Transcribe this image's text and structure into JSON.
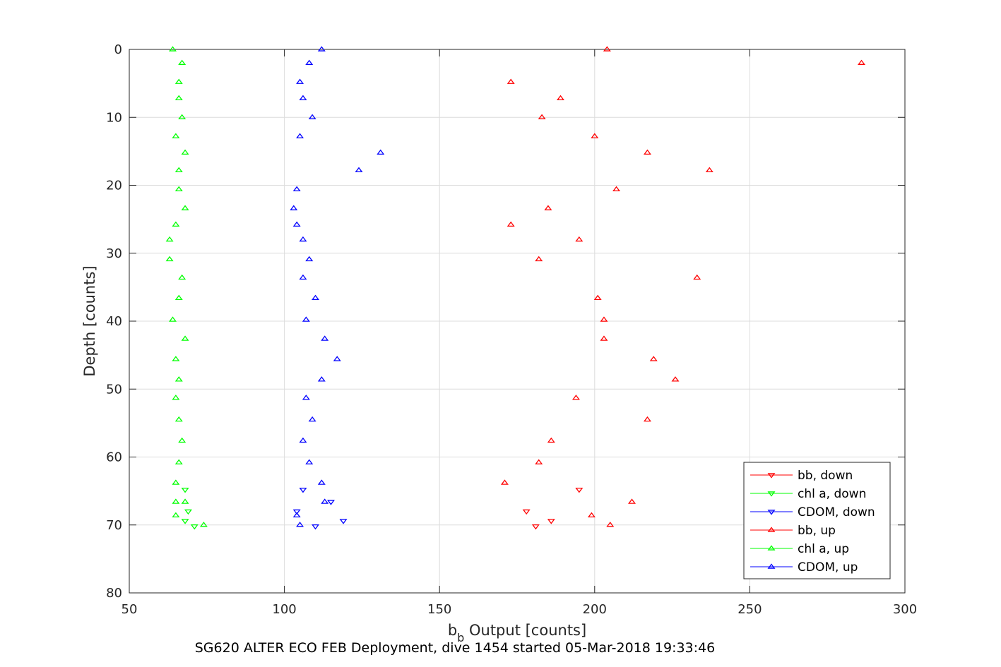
{
  "chart_data": {
    "type": "scatter",
    "title": "",
    "caption": "SG620 ALTER ECO FEB Deployment, dive 1454 started 05-Mar-2018 19:33:46",
    "xlabel_main": "b",
    "xlabel_sub": "b",
    "xlabel_rest": " Output [counts]",
    "ylabel": "Depth [counts]",
    "xlim": [
      50,
      300
    ],
    "ylim": [
      0,
      80
    ],
    "y_reversed": true,
    "xticks": [
      50,
      100,
      150,
      200,
      250,
      300
    ],
    "yticks": [
      0,
      10,
      20,
      30,
      40,
      50,
      60,
      70,
      80
    ],
    "grid": true,
    "legend_position": "bottom-right",
    "series": [
      {
        "name": "bb, down",
        "color": "#ff0000",
        "marker": "triangle-down",
        "x": [
          195,
          178,
          186,
          181
        ],
        "y": [
          64.8,
          68.0,
          69.4,
          70.2
        ]
      },
      {
        "name": "chl a, down",
        "color": "#00ff00",
        "marker": "triangle-down",
        "x": [
          68,
          69,
          68,
          71
        ],
        "y": [
          64.8,
          68.0,
          69.4,
          70.2
        ]
      },
      {
        "name": "CDOM, down",
        "color": "#0000ff",
        "marker": "triangle-down",
        "x": [
          106,
          115,
          104,
          119,
          110
        ],
        "y": [
          64.8,
          66.6,
          68.0,
          69.4,
          70.2
        ]
      },
      {
        "name": "bb, up",
        "color": "#ff0000",
        "marker": "triangle-up",
        "x": [
          204,
          286,
          173,
          189,
          183,
          200,
          217,
          237,
          207,
          185,
          173,
          195,
          182,
          233,
          201,
          203,
          203,
          219,
          226,
          194,
          217,
          186,
          182,
          171,
          212,
          199,
          205
        ],
        "y": [
          0,
          2.0,
          4.8,
          7.2,
          10.0,
          12.8,
          15.2,
          17.8,
          20.6,
          23.4,
          25.8,
          28.0,
          30.9,
          33.6,
          36.6,
          39.8,
          42.6,
          45.6,
          48.6,
          51.3,
          54.5,
          57.6,
          60.8,
          63.8,
          66.6,
          68.6,
          70.0
        ]
      },
      {
        "name": "chl a, up",
        "color": "#00ff00",
        "marker": "triangle-up",
        "x": [
          64,
          67,
          66,
          66,
          67,
          65,
          68,
          66,
          66,
          68,
          65,
          63,
          63,
          67,
          66,
          64,
          68,
          65,
          66,
          65,
          66,
          67,
          66,
          65,
          65,
          68,
          65,
          74
        ],
        "y": [
          0,
          2.0,
          4.8,
          7.2,
          10.0,
          12.8,
          15.2,
          17.8,
          20.6,
          23.4,
          25.8,
          28.0,
          30.9,
          33.6,
          36.6,
          39.8,
          42.6,
          45.6,
          48.6,
          51.3,
          54.5,
          57.6,
          60.8,
          63.8,
          66.6,
          66.6,
          68.6,
          70.0
        ]
      },
      {
        "name": "CDOM, up",
        "color": "#0000ff",
        "marker": "triangle-up",
        "x": [
          112,
          108,
          105,
          106,
          109,
          105,
          131,
          124,
          104,
          103,
          104,
          106,
          108,
          106,
          110,
          107,
          113,
          117,
          112,
          107,
          109,
          106,
          108,
          112,
          113,
          104,
          105
        ],
        "y": [
          0,
          2.0,
          4.8,
          7.2,
          10.0,
          12.8,
          15.2,
          17.8,
          20.6,
          23.4,
          25.8,
          28.0,
          30.9,
          33.6,
          36.6,
          39.8,
          42.6,
          45.6,
          48.6,
          51.3,
          54.5,
          57.6,
          60.8,
          63.8,
          66.6,
          68.6,
          70.0
        ]
      }
    ]
  }
}
